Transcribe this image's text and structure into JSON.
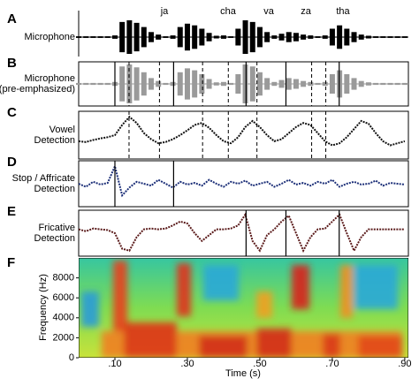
{
  "chart_data": {
    "type": "panels",
    "x": [
      0,
      0.02,
      0.04,
      0.06,
      0.08,
      0.1,
      0.12,
      0.14,
      0.16,
      0.18,
      0.2,
      0.22,
      0.24,
      0.26,
      0.28,
      0.3,
      0.32,
      0.34,
      0.36,
      0.38,
      0.4,
      0.42,
      0.44,
      0.46,
      0.48,
      0.5,
      0.52,
      0.54,
      0.56,
      0.58,
      0.6,
      0.62,
      0.64,
      0.66,
      0.68,
      0.7,
      0.72,
      0.74,
      0.76,
      0.78,
      0.8,
      0.82,
      0.84,
      0.86,
      0.88,
      0.9
    ],
    "xlim": [
      0,
      0.91
    ],
    "syllables": [
      "ja",
      "cha",
      "va",
      "za",
      "tha"
    ],
    "boundaries": [
      0.1,
      0.262,
      0.462,
      0.572,
      0.719
    ],
    "vowel_marks": [
      0.139,
      0.223,
      0.342,
      0.413,
      0.492,
      0.643,
      0.682
    ],
    "panels": [
      {
        "letter": "A",
        "label": [
          "Microphone"
        ],
        "color": "#000000",
        "values": [
          0.05,
          0.05,
          0.05,
          0.05,
          0.05,
          0.1,
          0.9,
          1,
          0.85,
          0.6,
          0.3,
          0.15,
          0.05,
          0.1,
          0.6,
          0.8,
          0.7,
          0.5,
          0.25,
          0.08,
          0.1,
          0.05,
          0.5,
          1,
          0.9,
          0.6,
          0.3,
          0.1,
          0.2,
          0.3,
          0.25,
          0.15,
          0.1,
          0.05,
          0.1,
          0.5,
          0.7,
          0.5,
          0.3,
          0.15,
          0.08,
          0.05,
          0.05,
          0.05,
          0.05,
          0.05
        ]
      },
      {
        "letter": "B",
        "label": [
          "Microphone",
          "(pre-emphasized)"
        ],
        "color": "#9a9a9a"
      },
      {
        "letter": "C",
        "label": [
          "Vowel",
          "Detection"
        ],
        "color": "#111111",
        "values": [
          0.35,
          0.33,
          0.38,
          0.42,
          0.45,
          0.5,
          0.75,
          0.95,
          0.8,
          0.55,
          0.4,
          0.3,
          0.33,
          0.4,
          0.5,
          0.62,
          0.75,
          0.8,
          0.68,
          0.5,
          0.35,
          0.3,
          0.45,
          0.7,
          0.85,
          0.7,
          0.5,
          0.35,
          0.4,
          0.55,
          0.7,
          0.8,
          0.75,
          0.55,
          0.35,
          0.25,
          0.3,
          0.45,
          0.65,
          0.85,
          0.78,
          0.55,
          0.35,
          0.25,
          0.3,
          0.35
        ]
      },
      {
        "letter": "D",
        "label": [
          "Stop / Affricate",
          "Detection"
        ],
        "color": "#1c2f78",
        "values": [
          0.5,
          0.42,
          0.55,
          0.48,
          0.52,
          0.95,
          0.2,
          0.4,
          0.55,
          0.5,
          0.45,
          0.6,
          0.5,
          0.4,
          0.55,
          0.48,
          0.52,
          0.45,
          0.6,
          0.5,
          0.42,
          0.55,
          0.5,
          0.58,
          0.45,
          0.5,
          0.55,
          0.42,
          0.5,
          0.6,
          0.48,
          0.52,
          0.45,
          0.55,
          0.5,
          0.6,
          0.42,
          0.5,
          0.55,
          0.48,
          0.5,
          0.58,
          0.45,
          0.52,
          0.5,
          0.48
        ]
      },
      {
        "letter": "E",
        "label": [
          "Fricative",
          "Detection"
        ],
        "color": "#5a1a1a",
        "values": [
          0.6,
          0.55,
          0.62,
          0.6,
          0.58,
          0.5,
          0.1,
          0.05,
          0.4,
          0.6,
          0.62,
          0.6,
          0.62,
          0.7,
          0.8,
          0.75,
          0.5,
          0.3,
          0.45,
          0.6,
          0.6,
          0.62,
          0.7,
          0.98,
          0.3,
          0.05,
          0.45,
          0.6,
          0.8,
          0.95,
          0.5,
          0.05,
          0.4,
          0.6,
          0.62,
          0.8,
          0.98,
          0.5,
          0.05,
          0.4,
          0.6,
          0.6,
          0.6,
          0.6,
          0.6,
          0.6
        ]
      }
    ],
    "spectrogram": {
      "letter": "F",
      "ylabel": "Frequency (Hz)",
      "xlabel": "Time (s)",
      "ylim": [
        0,
        10000
      ],
      "yticks": [
        0,
        2000,
        4000,
        6000,
        8000
      ],
      "xticks": [
        {
          "value": 0.1,
          "label": ".10"
        },
        {
          "value": 0.3,
          "label": ".30"
        },
        {
          "value": 0.5,
          "label": ".50"
        },
        {
          "value": 0.7,
          "label": ".70"
        },
        {
          "value": 0.9,
          "label": ".90"
        }
      ]
    }
  }
}
